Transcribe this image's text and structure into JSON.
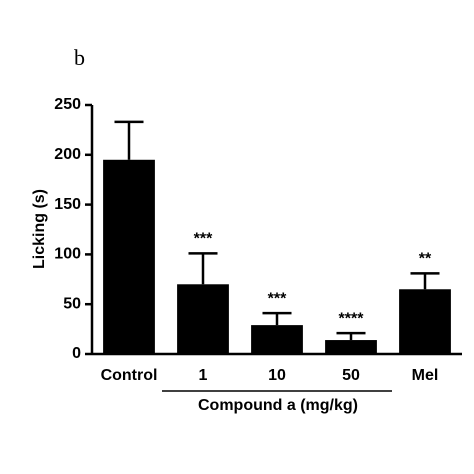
{
  "chart_data": {
    "type": "bar",
    "panel_label": "b",
    "ylabel": "Licking (s)",
    "xlabel": "Compound a (mg/kg)",
    "categories": [
      "Control",
      "1",
      "10",
      "50",
      "Mel"
    ],
    "values": [
      195,
      70,
      29,
      14,
      65
    ],
    "errors": [
      38,
      31,
      12,
      7,
      16
    ],
    "annotations": [
      null,
      "***",
      "***",
      "****",
      "**"
    ],
    "color": "#000000",
    "ylim": [
      0,
      250
    ],
    "yticks": [
      0,
      50,
      100,
      150,
      200,
      250
    ]
  }
}
